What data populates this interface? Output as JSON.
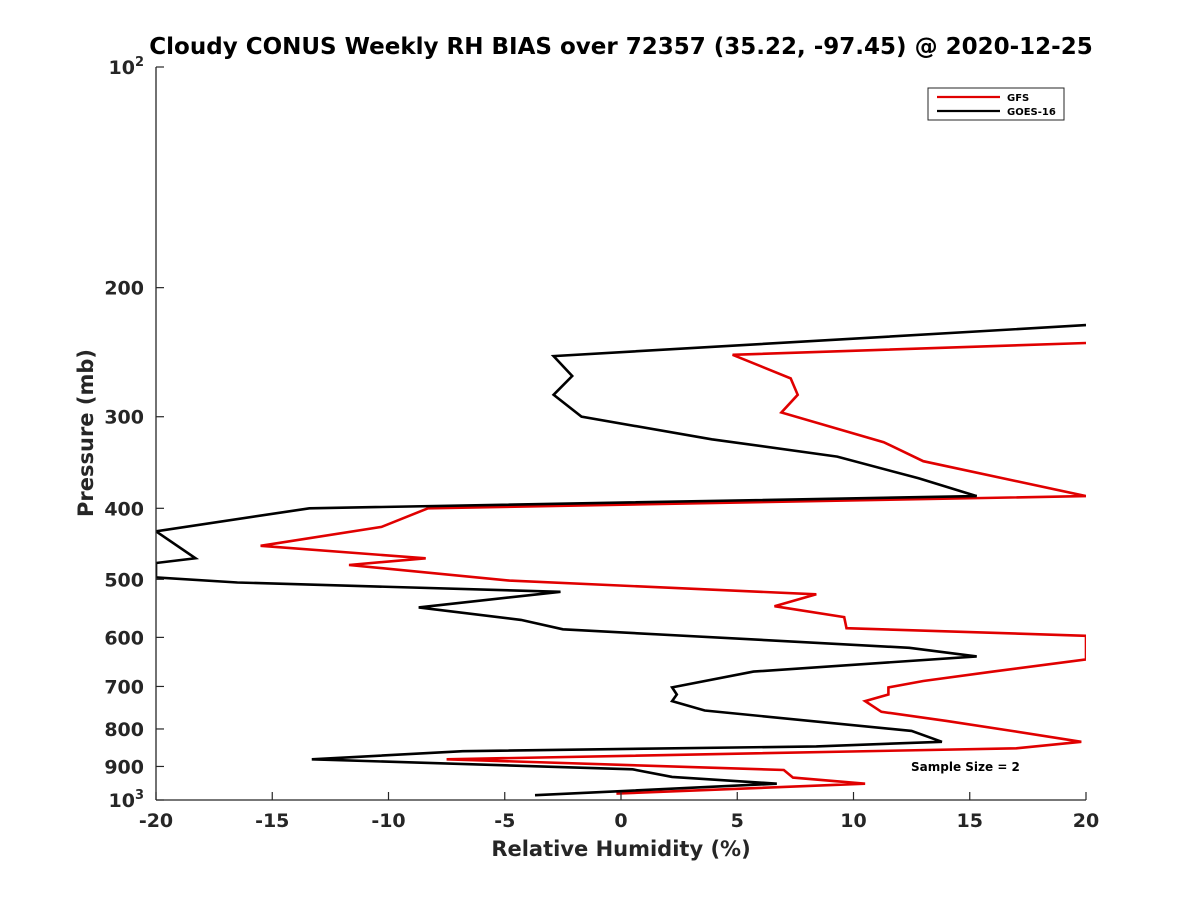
{
  "chart_data": {
    "type": "line",
    "title": "Cloudy CONUS Weekly RH BIAS over 72357 (35.22, -97.45) @ 2020-12-25",
    "xlabel": "Relative Humidity (%)",
    "ylabel": "Pressure (mb)",
    "xlim": [
      -20,
      20
    ],
    "ylim": [
      100,
      1000
    ],
    "y_scale": "log",
    "y_reversed": true,
    "x_ticks": [
      -20,
      -15,
      -10,
      -5,
      0,
      5,
      10,
      15,
      20
    ],
    "y_ticks": [
      {
        "value": 100,
        "label": "10",
        "sup": "2"
      },
      {
        "value": 200,
        "label": "200",
        "sup": ""
      },
      {
        "value": 300,
        "label": "300",
        "sup": ""
      },
      {
        "value": 400,
        "label": "400",
        "sup": ""
      },
      {
        "value": 500,
        "label": "500",
        "sup": ""
      },
      {
        "value": 600,
        "label": "600",
        "sup": ""
      },
      {
        "value": 700,
        "label": "700",
        "sup": ""
      },
      {
        "value": 800,
        "label": "800",
        "sup": ""
      },
      {
        "value": 900,
        "label": "900",
        "sup": ""
      },
      {
        "value": 1000,
        "label": "10",
        "sup": "3"
      }
    ],
    "grid": false,
    "legend_position": "top-right",
    "annotation": "Sample Size = 2",
    "series": [
      {
        "name": "GFS",
        "color": "#e00000",
        "points": [
          [
            20,
            238
          ],
          [
            4.8,
            247
          ],
          [
            7.3,
            266
          ],
          [
            7.6,
            280
          ],
          [
            6.9,
            296
          ],
          [
            11.3,
            325
          ],
          [
            13.0,
            345
          ],
          [
            20,
            385
          ],
          [
            -8.3,
            400
          ],
          [
            -10.3,
            424
          ],
          [
            -15.5,
            450
          ],
          [
            -8.4,
            468
          ],
          [
            -11.7,
            478
          ],
          [
            -4.8,
            502
          ],
          [
            8.4,
            524
          ],
          [
            6.6,
            544
          ],
          [
            9.6,
            563
          ],
          [
            9.7,
            583
          ],
          [
            20,
            597
          ],
          [
            20,
            643
          ],
          [
            16.0,
            668
          ],
          [
            13.0,
            688
          ],
          [
            11.5,
            702
          ],
          [
            11.5,
            718
          ],
          [
            10.5,
            733
          ],
          [
            11.2,
            758
          ],
          [
            14.0,
            780
          ],
          [
            16.8,
            805
          ],
          [
            19.8,
            833
          ],
          [
            17.0,
            850
          ],
          [
            -7.5,
            880
          ],
          [
            7.0,
            910
          ],
          [
            7.4,
            932
          ],
          [
            10.5,
            950
          ],
          [
            -0.2,
            980
          ]
        ]
      },
      {
        "name": "GOES-16",
        "color": "#000000",
        "points": [
          [
            20,
            225
          ],
          [
            -2.9,
            248
          ],
          [
            -2.1,
            264
          ],
          [
            -2.9,
            280
          ],
          [
            -1.7,
            300
          ],
          [
            3.9,
            322
          ],
          [
            9.3,
            340
          ],
          [
            12.8,
            364
          ],
          [
            15.3,
            385
          ],
          [
            -13.4,
            400
          ],
          [
            -20,
            430
          ],
          [
            -18.3,
            468
          ],
          [
            -20,
            475
          ],
          [
            -20,
            497
          ],
          [
            -16.5,
            505
          ],
          [
            -2.6,
            520
          ],
          [
            -8.7,
            546
          ],
          [
            -4.3,
            568
          ],
          [
            -2.5,
            585
          ],
          [
            12.4,
            620
          ],
          [
            15.3,
            637
          ],
          [
            5.7,
            668
          ],
          [
            2.2,
            702
          ],
          [
            2.4,
            718
          ],
          [
            2.2,
            733
          ],
          [
            3.6,
            755
          ],
          [
            12.5,
            805
          ],
          [
            13.8,
            833
          ],
          [
            8.4,
            845
          ],
          [
            -6.8,
            858
          ],
          [
            -13.3,
            880
          ],
          [
            0.5,
            908
          ],
          [
            2.2,
            930
          ],
          [
            6.7,
            950
          ],
          [
            -3.7,
            985
          ]
        ]
      }
    ]
  }
}
